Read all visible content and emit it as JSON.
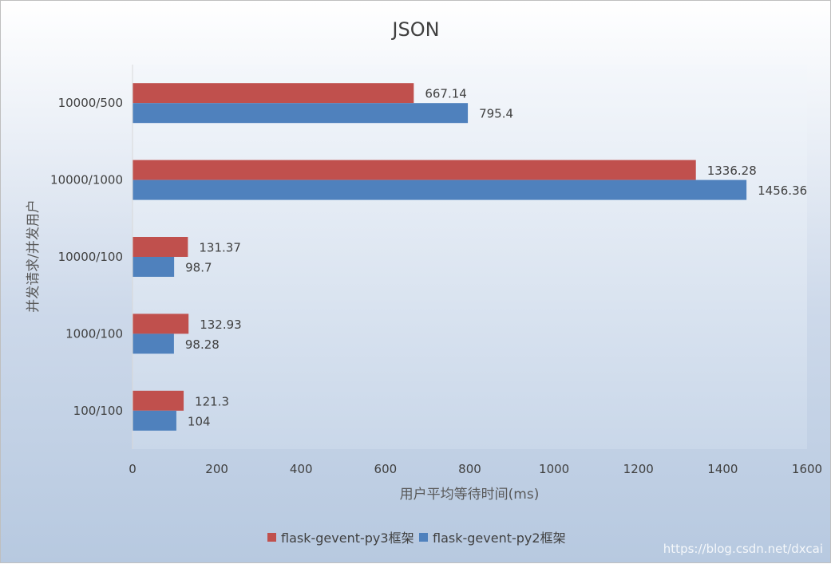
{
  "chart_data": {
    "type": "bar",
    "orientation": "horizontal",
    "title": "JSON",
    "categories": [
      "10000/500",
      "10000/1000",
      "10000/100",
      "1000/100",
      "100/100"
    ],
    "series": [
      {
        "name": "flask-gevent-py3框架",
        "color": "#c0504d",
        "values": [
          667.14,
          1336.28,
          131.37,
          132.93,
          121.3
        ],
        "labels": [
          "667.14",
          "1336.28",
          "131.37",
          "132.93",
          "121.3"
        ]
      },
      {
        "name": "flask-gevent-py2框架",
        "color": "#4f81bd",
        "values": [
          795.4,
          1456.36,
          98.7,
          98.28,
          104
        ],
        "labels": [
          "795.4",
          "1456.36",
          "98.7",
          "98.28",
          "104"
        ]
      }
    ],
    "xlabel": "用户平均等待时间(ms)",
    "ylabel": "并发请求/并发用户",
    "xlim": [
      0,
      1600
    ],
    "xticks": [
      "0",
      "200",
      "400",
      "600",
      "800",
      "1000",
      "1200",
      "1400",
      "1600"
    ],
    "grid": false,
    "legend_position": "bottom"
  },
  "watermark": "https://blog.csdn.net/dxcai"
}
